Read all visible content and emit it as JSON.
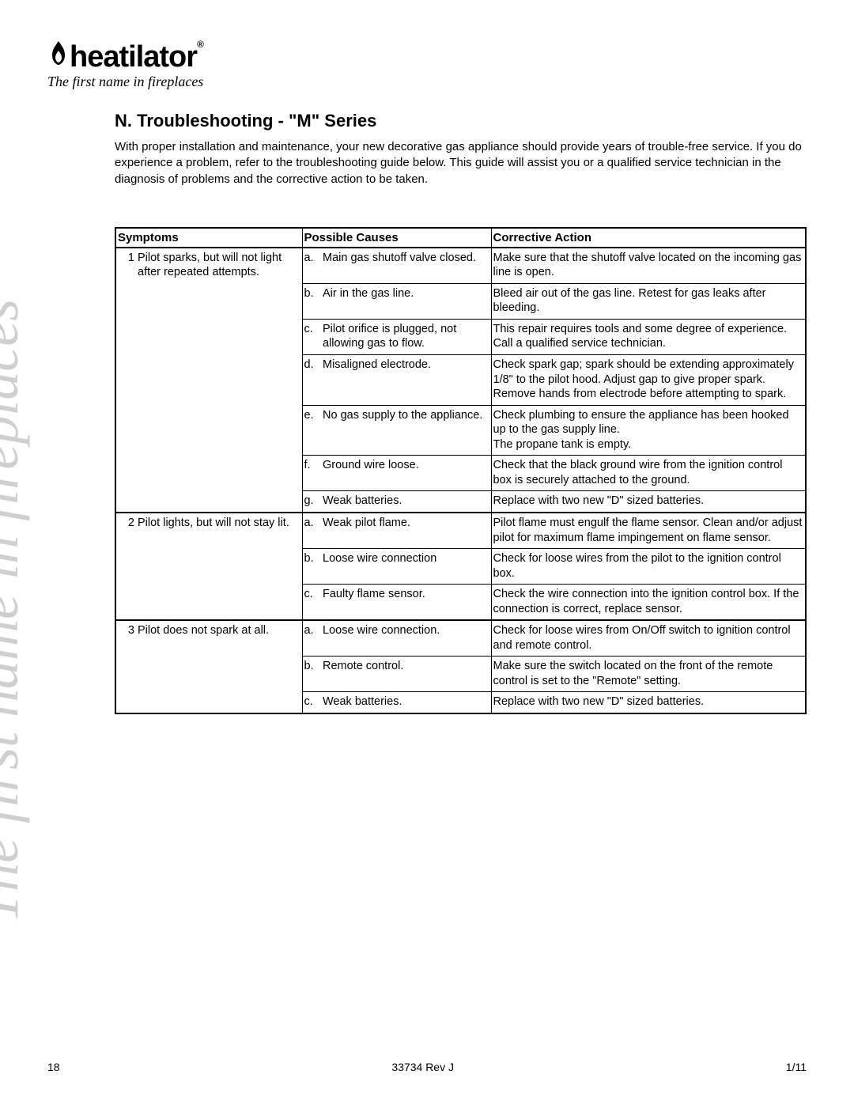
{
  "logo": {
    "brand": "heatilator",
    "tagline": "The first name in fireplaces",
    "reg_mark": "®"
  },
  "watermark_text": "The first name in fireplaces",
  "section_title": "N. Troubleshooting - \"M\" Series",
  "intro_text": "With proper installation and maintenance, your new decorative gas appliance should provide years of trouble-free service. If you do experience a problem, refer to the troubleshooting guide below. This guide will assist you or a qualified service technician in the diagnosis of problems and the corrective action to be taken.",
  "table": {
    "columns": [
      "Symptoms",
      "Possible Causes",
      "Corrective Action"
    ],
    "groups": [
      {
        "num": "1",
        "symptom": "Pilot sparks, but will not light after repeated attempts.",
        "rows": [
          {
            "letter": "a.",
            "cause": "Main gas shutoff valve closed.",
            "action": "Make sure that the shutoff valve located on  the incoming gas line is open."
          },
          {
            "letter": "b.",
            "cause": "Air in the gas line.",
            "action": "Bleed air out of the gas line. Retest for gas leaks after bleeding."
          },
          {
            "letter": "c.",
            "cause": "Pilot orifice is plugged, not allowing gas to flow.",
            "action": "This repair requires tools and some degree of experience. Call a qualified service technician."
          },
          {
            "letter": "d.",
            "cause": "Misaligned electrode.",
            "action": "Check spark gap; spark should be extending approximately 1/8\" to the pilot hood. Adjust gap to give proper spark. Remove hands from electrode before attempting to spark."
          },
          {
            "letter": "e.",
            "cause": "No gas supply to the appliance.",
            "action": "Check plumbing to ensure the appliance has been hooked up to the gas supply line.\nThe propane tank is empty."
          },
          {
            "letter": "f.",
            "cause": "Ground wire loose.",
            "action": "Check that the black ground wire from the ignition control box is securely attached to the ground."
          },
          {
            "letter": "g.",
            "cause": "Weak batteries.",
            "action": "Replace with two new \"D\" sized batteries."
          }
        ]
      },
      {
        "num": "2",
        "symptom": "Pilot lights, but will not stay lit.",
        "rows": [
          {
            "letter": "a.",
            "cause": "Weak pilot flame.",
            "action": "Pilot flame must engulf the flame sensor. Clean and/or adjust pilot for maximum flame impingement on flame sensor."
          },
          {
            "letter": "b.",
            "cause": "Loose wire connection",
            "action": "Check for loose wires from the pilot to the ignition control box."
          },
          {
            "letter": "c.",
            "cause": "Faulty flame sensor.",
            "action": "Check the wire connection into the ignition control box. If the connection is correct, replace sensor."
          }
        ]
      },
      {
        "num": "3",
        "symptom": "Pilot does not spark at all.",
        "rows": [
          {
            "letter": "a.",
            "cause": "Loose wire connection.",
            "action": "Check for loose wires from On/Off switch to ignition control and remote control."
          },
          {
            "letter": "b.",
            "cause": "Remote control.",
            "action": "Make sure the switch located on the front of the remote control is set to the \"Remote\" setting."
          },
          {
            "letter": "c.",
            "cause": "Weak batteries.",
            "action": "Replace with two new \"D\" sized batteries."
          }
        ]
      }
    ]
  },
  "footer": {
    "page_num": "18",
    "doc_id": "33734 Rev J",
    "date": "1/11"
  },
  "colors": {
    "text": "#000000",
    "watermark": "#cfcfcf",
    "border": "#000000",
    "background": "#ffffff"
  }
}
